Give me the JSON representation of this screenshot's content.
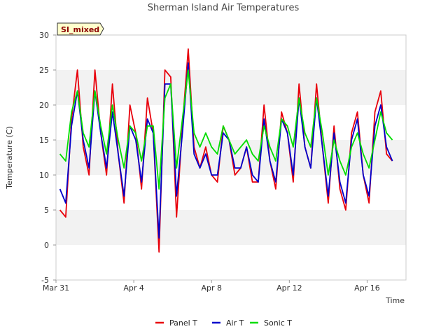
{
  "chart_data": {
    "type": "line",
    "title": "Sherman Island Air Temperatures",
    "xlabel": "Time",
    "ylabel": "Temperature (C)",
    "badge": "SI_mixed",
    "ylim": [
      -5,
      30
    ],
    "yticks": [
      -5,
      0,
      5,
      10,
      15,
      20,
      25,
      30
    ],
    "xlim_days": [
      0,
      18
    ],
    "xticks": [
      {
        "day": 0,
        "label": "Mar 31"
      },
      {
        "day": 4,
        "label": "Apr 4"
      },
      {
        "day": 8,
        "label": "Apr 8"
      },
      {
        "day": 12,
        "label": "Apr 12"
      },
      {
        "day": 16,
        "label": "Apr 16"
      }
    ],
    "grid_bands": true,
    "legend_position": "bottom",
    "x_day": [
      0.2,
      0.5,
      0.8,
      1.1,
      1.4,
      1.7,
      2.0,
      2.3,
      2.6,
      2.9,
      3.2,
      3.5,
      3.8,
      4.1,
      4.4,
      4.7,
      5.0,
      5.3,
      5.6,
      5.9,
      6.2,
      6.5,
      6.8,
      7.1,
      7.4,
      7.7,
      8.0,
      8.3,
      8.6,
      8.9,
      9.2,
      9.5,
      9.8,
      10.1,
      10.4,
      10.7,
      11.0,
      11.3,
      11.6,
      11.9,
      12.2,
      12.5,
      12.8,
      13.1,
      13.4,
      13.7,
      14.0,
      14.3,
      14.6,
      14.9,
      15.2,
      15.5,
      15.8,
      16.1,
      16.4,
      16.7,
      17.0,
      17.3
    ],
    "series": [
      {
        "name": "Panel T",
        "color": "#e8000b",
        "values": [
          5,
          4,
          18,
          25,
          14,
          10,
          25,
          16,
          10,
          23,
          13,
          6,
          20,
          16,
          8,
          21,
          16,
          -1,
          25,
          24,
          4,
          17,
          28,
          14,
          11,
          14,
          10,
          9,
          17,
          15,
          10,
          11,
          14,
          9,
          9,
          20,
          12,
          8,
          19,
          16,
          9,
          23,
          14,
          11,
          23,
          14,
          6,
          17,
          8,
          5,
          16,
          19,
          10,
          6,
          19,
          22,
          13,
          12
        ]
      },
      {
        "name": "Air T",
        "color": "#0000cc",
        "values": [
          8,
          6,
          17,
          22,
          15,
          11,
          22,
          16,
          11,
          19,
          13,
          7,
          17,
          15,
          9,
          18,
          16,
          1,
          23,
          23,
          7,
          16,
          26,
          13,
          11,
          13,
          10,
          10,
          16,
          15,
          11,
          11,
          14,
          10,
          9,
          18,
          12,
          9,
          18,
          16,
          10,
          21,
          14,
          11,
          21,
          14,
          7,
          16,
          9,
          6,
          15,
          18,
          10,
          7,
          17,
          20,
          14,
          12
        ]
      },
      {
        "name": "Sonic T",
        "color": "#00dd00",
        "values": [
          13,
          12,
          19,
          22,
          16,
          14,
          22,
          17,
          13,
          20,
          15,
          11,
          17,
          16,
          12,
          17,
          17,
          8,
          21,
          23,
          11,
          18,
          25,
          16,
          14,
          16,
          14,
          13,
          17,
          15,
          13,
          14,
          15,
          13,
          12,
          17,
          14,
          12,
          18,
          17,
          14,
          21,
          16,
          14,
          21,
          16,
          10,
          15,
          12,
          10,
          14,
          16,
          13,
          11,
          15,
          19,
          16,
          15
        ]
      }
    ]
  }
}
